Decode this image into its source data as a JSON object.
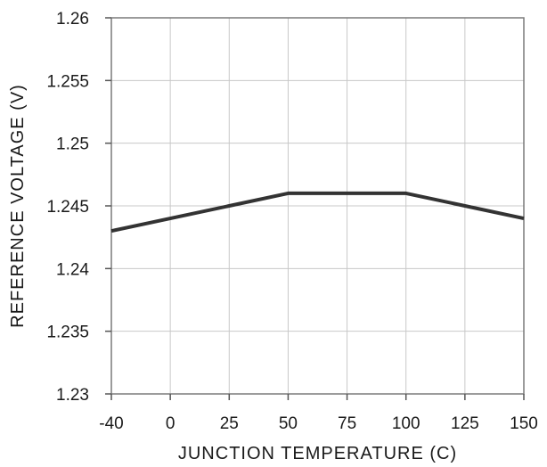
{
  "chart_data": {
    "type": "line",
    "title": "",
    "xlabel": "JUNCTION TEMPERATURE (C)",
    "ylabel": "REFERENCE VOLTAGE (V)",
    "x_tick_labels": [
      "-40",
      "0",
      "25",
      "50",
      "75",
      "100",
      "125",
      "150"
    ],
    "y_tick_labels": [
      "1.23",
      "1.235",
      "1.24",
      "1.245",
      "1.25",
      "1.255",
      "1.26"
    ],
    "x_category_axis": true,
    "ylim": [
      1.23,
      1.26
    ],
    "y_ticks": [
      1.23,
      1.235,
      1.24,
      1.245,
      1.25,
      1.255,
      1.26
    ],
    "grid": true,
    "series": [
      {
        "x": [
          "-40",
          "0",
          "25",
          "50",
          "75",
          "100",
          "125",
          "150"
        ],
        "values": [
          1.243,
          1.244,
          1.245,
          1.246,
          1.246,
          1.246,
          1.245,
          1.244
        ],
        "color": "#333333"
      }
    ]
  }
}
